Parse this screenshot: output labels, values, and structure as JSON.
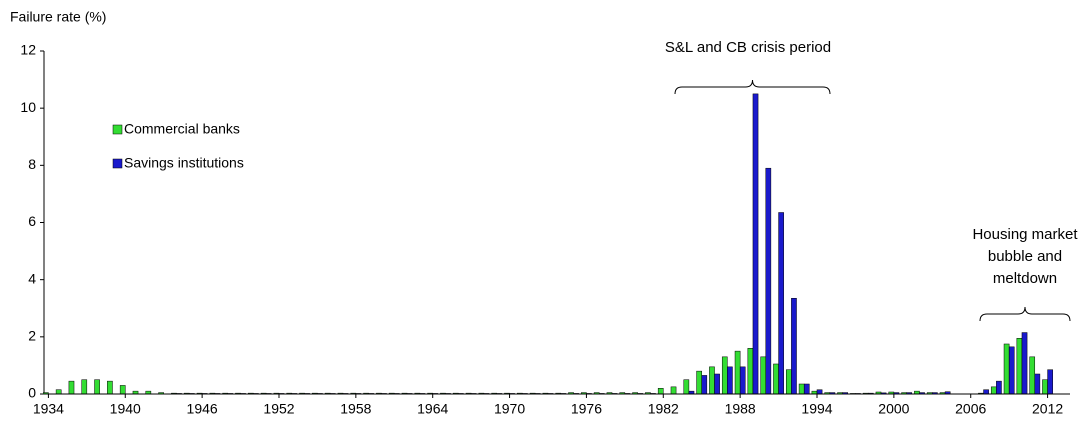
{
  "chart_data": {
    "type": "bar",
    "y_label": "Failure rate (%)",
    "categories": [
      1934,
      null,
      null,
      null,
      null,
      null,
      1940,
      null,
      null,
      null,
      null,
      null,
      1946,
      null,
      null,
      null,
      null,
      null,
      1952,
      null,
      null,
      null,
      null,
      null,
      1958,
      null,
      null,
      null,
      null,
      null,
      1964,
      null,
      null,
      null,
      null,
      null,
      1970,
      null,
      null,
      null,
      null,
      null,
      1976,
      null,
      null,
      null,
      null,
      null,
      1982,
      null,
      null,
      null,
      null,
      null,
      1988,
      null,
      null,
      null,
      null,
      null,
      1994,
      null,
      null,
      null,
      null,
      null,
      2000,
      null,
      null,
      null,
      null,
      null,
      2006,
      null,
      null,
      null,
      null,
      null,
      2012
    ],
    "series": [
      {
        "name": "Commercial banks",
        "color": "#33dd33",
        "values": [
          0.05,
          0.15,
          0.45,
          0.5,
          0.5,
          0.45,
          0.3,
          0.1,
          0.1,
          0.05,
          0.03,
          0.03,
          0.03,
          0.03,
          0.03,
          0.03,
          0.03,
          0.03,
          0.03,
          0.03,
          0.03,
          0.03,
          0.03,
          0.03,
          0.03,
          0.03,
          0.03,
          0.03,
          0.03,
          0.03,
          0.03,
          0.03,
          0.03,
          0.03,
          0.03,
          0.03,
          0.03,
          0.03,
          0.03,
          0.03,
          0.03,
          0.05,
          0.05,
          0.05,
          0.05,
          0.05,
          0.05,
          0.05,
          0.2,
          0.25,
          0.5,
          0.8,
          0.95,
          1.3,
          1.5,
          1.6,
          1.3,
          1.05,
          0.85,
          0.35,
          0.1,
          0.05,
          0.05,
          0.02,
          0.03,
          0.07,
          0.07,
          0.05,
          0.1,
          0.05,
          0.05,
          0,
          0,
          0.03,
          0.25,
          1.75,
          1.95,
          1.3,
          0.5
        ]
      },
      {
        "name": "Savings institutions",
        "color": "#1a1acc",
        "values": [
          0,
          0,
          0,
          0,
          0,
          0,
          0,
          0,
          0,
          0,
          0.02,
          0.02,
          0.02,
          0.02,
          0.02,
          0.02,
          0.02,
          0.02,
          0.02,
          0.02,
          0.02,
          0.02,
          0.02,
          0.02,
          0.02,
          0.02,
          0.02,
          0.02,
          0.02,
          0.02,
          0.02,
          0.02,
          0.02,
          0.02,
          0.02,
          0.02,
          0.02,
          0.02,
          0.02,
          0.02,
          0.02,
          0.02,
          0.02,
          0.02,
          0.02,
          0.02,
          0.02,
          0.02,
          0,
          0,
          0.1,
          0.65,
          0.7,
          0.95,
          0.95,
          10.5,
          7.9,
          6.35,
          3.35,
          0.35,
          0.15,
          0.05,
          0.05,
          0.02,
          0.03,
          0.04,
          0.05,
          0.05,
          0.05,
          0.05,
          0.08,
          0,
          0,
          0.15,
          0.45,
          1.65,
          2.15,
          0.7,
          0.85
        ]
      }
    ],
    "ylim": [
      0,
      12
    ],
    "yticks": [
      0,
      2,
      4,
      6,
      8,
      10,
      12
    ],
    "grid": false,
    "legend": "upper left",
    "annotations": [
      [
        "S&L and CB crisis period"
      ],
      [
        "Housing market",
        "bubble and",
        "meltdown"
      ]
    ]
  }
}
